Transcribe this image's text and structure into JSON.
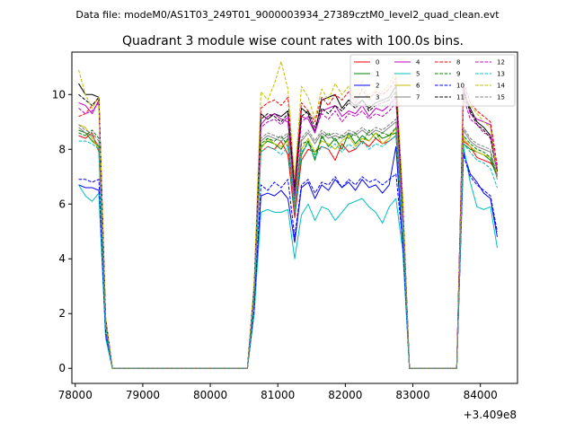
{
  "header": "Data file: modeM0/AS1T03_249T01_9000003934_27389cztM0_level2_quad_clean.evt",
  "chart_data": {
    "type": "line",
    "title": "Quadrant 3 module wise count rates with 100.0s bins.",
    "xlabel": "",
    "ylabel": "",
    "x_offset_label": "+3.409e8",
    "xlim": [
      77950,
      84550
    ],
    "ylim": [
      -0.55,
      11.55
    ],
    "x_ticks": [
      78000,
      79000,
      80000,
      81000,
      82000,
      83000,
      84000
    ],
    "x_tick_labels": [
      "78000",
      "79000",
      "80000",
      "81000",
      "82000",
      "83000",
      "84000"
    ],
    "y_ticks": [
      0,
      2,
      4,
      6,
      8,
      10
    ],
    "y_tick_labels": [
      "0",
      "2",
      "4",
      "6",
      "8",
      "10"
    ],
    "grid": false,
    "legend_position": "top-right",
    "x": [
      78050,
      78150,
      78250,
      78350,
      78450,
      78550,
      78650,
      78750,
      78850,
      78950,
      79050,
      79150,
      79250,
      79350,
      79450,
      79550,
      79650,
      79750,
      79850,
      79950,
      80050,
      80150,
      80250,
      80350,
      80450,
      80550,
      80650,
      80750,
      80850,
      80950,
      81050,
      81150,
      81250,
      81350,
      81450,
      81550,
      81650,
      81750,
      81850,
      81950,
      82050,
      82150,
      82250,
      82350,
      82450,
      82550,
      82650,
      82750,
      82850,
      82950,
      83050,
      83150,
      83250,
      83350,
      83450,
      83550,
      83650,
      83750,
      83850,
      83950,
      84050,
      84150,
      84250
    ],
    "series": [
      {
        "name": "0",
        "color": "#ff0000",
        "dash": "solid",
        "values": [
          8.5,
          8.4,
          8.6,
          7.9,
          1.6,
          0,
          0,
          0,
          0,
          0,
          0,
          0,
          0,
          0,
          0,
          0,
          0,
          0,
          0,
          0,
          0,
          0,
          0,
          0,
          0,
          0,
          2.6,
          7.9,
          8.1,
          8.0,
          8.3,
          7.8,
          5.5,
          7.6,
          8.0,
          7.9,
          8.1,
          8.0,
          7.6,
          8.2,
          7.9,
          8.0,
          8.3,
          8.1,
          8.4,
          8.2,
          8.3,
          8.5,
          5.2,
          0,
          0,
          0,
          0,
          0,
          0,
          0,
          0,
          8.3,
          8.1,
          7.7,
          7.6,
          7.5,
          7.2
        ]
      },
      {
        "name": "1",
        "color": "#008000",
        "dash": "solid",
        "values": [
          8.7,
          8.6,
          8.3,
          8.1,
          1.6,
          0,
          0,
          0,
          0,
          0,
          0,
          0,
          0,
          0,
          0,
          0,
          0,
          0,
          0,
          0,
          0,
          0,
          0,
          0,
          0,
          0,
          2.7,
          8.1,
          8.3,
          8.2,
          8.0,
          8.4,
          5.7,
          7.8,
          8.3,
          7.6,
          8.5,
          8.1,
          8.4,
          8.0,
          8.6,
          8.2,
          8.5,
          8.3,
          8.6,
          8.4,
          8.5,
          8.6,
          5.4,
          0,
          0,
          0,
          0,
          0,
          0,
          0,
          0,
          8.2,
          8.0,
          7.9,
          7.8,
          7.6,
          7.0
        ]
      },
      {
        "name": "2",
        "color": "#0000ff",
        "dash": "solid",
        "values": [
          6.7,
          6.6,
          6.6,
          6.5,
          1.2,
          0,
          0,
          0,
          0,
          0,
          0,
          0,
          0,
          0,
          0,
          0,
          0,
          0,
          0,
          0,
          0,
          0,
          0,
          0,
          0,
          0,
          2.1,
          6.3,
          6.4,
          6.3,
          6.5,
          6.2,
          4.6,
          6.6,
          6.8,
          6.2,
          6.7,
          6.5,
          6.9,
          6.6,
          6.8,
          6.5,
          6.9,
          6.6,
          6.7,
          6.4,
          6.7,
          8.1,
          4.5,
          0,
          0,
          0,
          0,
          0,
          0,
          0,
          0,
          7.9,
          7.1,
          6.8,
          6.4,
          6.2,
          4.8
        ]
      },
      {
        "name": "3",
        "color": "#000000",
        "dash": "solid",
        "values": [
          10.4,
          10.0,
          10.0,
          9.9,
          1.8,
          0,
          0,
          0,
          0,
          0,
          0,
          0,
          0,
          0,
          0,
          0,
          0,
          0,
          0,
          0,
          0,
          0,
          0,
          0,
          0,
          0,
          3.0,
          9.3,
          9.1,
          9.3,
          9.2,
          9.4,
          6.6,
          9.5,
          9.3,
          8.6,
          9.8,
          9.9,
          10.0,
          9.5,
          9.8,
          9.6,
          9.8,
          9.5,
          9.7,
          9.8,
          9.9,
          10.3,
          6.1,
          0,
          0,
          0,
          0,
          0,
          0,
          0,
          0,
          10.1,
          9.5,
          9.0,
          8.8,
          8.5,
          7.2
        ]
      },
      {
        "name": "4",
        "color": "#c000c0",
        "dash": "solid",
        "values": [
          9.7,
          9.6,
          9.3,
          9.8,
          1.8,
          0,
          0,
          0,
          0,
          0,
          0,
          0,
          0,
          0,
          0,
          0,
          0,
          0,
          0,
          0,
          0,
          0,
          0,
          0,
          0,
          0,
          2.9,
          8.9,
          9.2,
          9.3,
          9.1,
          9.0,
          6.3,
          9.2,
          9.1,
          8.6,
          9.4,
          9.5,
          9.6,
          9.2,
          9.4,
          9.3,
          9.6,
          9.2,
          9.5,
          9.4,
          9.6,
          9.9,
          5.9,
          0,
          0,
          0,
          0,
          0,
          0,
          0,
          0,
          10.3,
          9.3,
          9.1,
          9.0,
          8.9,
          7.0
        ]
      },
      {
        "name": "5",
        "color": "#00bfbf",
        "dash": "solid",
        "values": [
          6.7,
          6.3,
          6.1,
          6.4,
          1.1,
          0,
          0,
          0,
          0,
          0,
          0,
          0,
          0,
          0,
          0,
          0,
          0,
          0,
          0,
          0,
          0,
          0,
          0,
          0,
          0,
          0,
          2.0,
          5.7,
          5.8,
          5.7,
          5.7,
          5.8,
          4.0,
          5.6,
          6.0,
          5.4,
          5.9,
          5.8,
          5.4,
          5.7,
          6.0,
          6.1,
          6.2,
          5.9,
          5.7,
          5.3,
          5.9,
          6.2,
          4.3,
          0,
          0,
          0,
          0,
          0,
          0,
          0,
          0,
          8.1,
          6.8,
          5.9,
          5.8,
          5.9,
          4.4
        ]
      },
      {
        "name": "6",
        "color": "#bfbf00",
        "dash": "solid",
        "values": [
          8.9,
          8.8,
          8.4,
          8.0,
          1.6,
          0,
          0,
          0,
          0,
          0,
          0,
          0,
          0,
          0,
          0,
          0,
          0,
          0,
          0,
          0,
          0,
          0,
          0,
          0,
          0,
          0,
          2.7,
          8.0,
          8.4,
          8.2,
          8.1,
          8.3,
          5.8,
          8.0,
          8.4,
          7.9,
          8.3,
          8.2,
          8.0,
          8.3,
          8.5,
          8.1,
          8.4,
          8.3,
          8.6,
          8.2,
          8.4,
          8.8,
          5.3,
          0,
          0,
          0,
          0,
          0,
          0,
          0,
          0,
          8.4,
          8.1,
          7.9,
          7.8,
          7.7,
          7.1
        ]
      },
      {
        "name": "7",
        "color": "#808080",
        "dash": "solid",
        "values": [
          8.8,
          8.6,
          8.5,
          8.1,
          1.6,
          0,
          0,
          0,
          0,
          0,
          0,
          0,
          0,
          0,
          0,
          0,
          0,
          0,
          0,
          0,
          0,
          0,
          0,
          0,
          0,
          0,
          2.7,
          8.3,
          8.5,
          8.4,
          8.3,
          8.5,
          5.9,
          8.3,
          8.6,
          8.2,
          8.6,
          8.4,
          8.5,
          8.4,
          8.6,
          8.5,
          8.7,
          8.5,
          8.7,
          8.6,
          8.8,
          9.0,
          5.5,
          0,
          0,
          0,
          0,
          0,
          0,
          0,
          0,
          8.7,
          8.3,
          8.1,
          8.0,
          7.9,
          6.9
        ]
      },
      {
        "name": "8",
        "color": "#ff0000",
        "dash": "dashed",
        "values": [
          9.2,
          9.3,
          9.6,
          9.9,
          1.8,
          0,
          0,
          0,
          0,
          0,
          0,
          0,
          0,
          0,
          0,
          0,
          0,
          0,
          0,
          0,
          0,
          0,
          0,
          0,
          0,
          0,
          3.0,
          9.5,
          9.7,
          9.8,
          9.6,
          9.9,
          6.8,
          9.7,
          9.4,
          9.0,
          9.9,
          9.6,
          10.0,
          9.8,
          10.1,
          9.7,
          10.2,
          9.8,
          10.1,
          10.0,
          10.2,
          10.6,
          6.2,
          0,
          0,
          0,
          0,
          0,
          0,
          0,
          0,
          10.4,
          9.7,
          9.4,
          9.2,
          9.0,
          7.4
        ]
      },
      {
        "name": "9",
        "color": "#008000",
        "dash": "dashed",
        "values": [
          8.6,
          8.5,
          8.7,
          8.4,
          1.6,
          0,
          0,
          0,
          0,
          0,
          0,
          0,
          0,
          0,
          0,
          0,
          0,
          0,
          0,
          0,
          0,
          0,
          0,
          0,
          0,
          0,
          2.7,
          8.2,
          8.4,
          8.3,
          8.5,
          8.1,
          5.9,
          8.2,
          8.3,
          7.8,
          8.4,
          8.6,
          8.3,
          8.5,
          8.4,
          8.6,
          8.2,
          8.7,
          8.4,
          8.6,
          8.5,
          8.8,
          5.3,
          0,
          0,
          0,
          0,
          0,
          0,
          0,
          0,
          8.5,
          8.2,
          8.0,
          7.9,
          7.7,
          7.0
        ]
      },
      {
        "name": "10",
        "color": "#0000ff",
        "dash": "dashed",
        "values": [
          6.9,
          6.9,
          6.8,
          6.9,
          1.3,
          0,
          0,
          0,
          0,
          0,
          0,
          0,
          0,
          0,
          0,
          0,
          0,
          0,
          0,
          0,
          0,
          0,
          0,
          0,
          0,
          0,
          2.2,
          6.7,
          6.5,
          6.8,
          6.6,
          6.9,
          4.8,
          6.7,
          6.9,
          6.4,
          6.8,
          6.7,
          7.0,
          6.6,
          6.9,
          6.7,
          7.0,
          6.8,
          6.9,
          6.7,
          6.9,
          7.1,
          4.6,
          0,
          0,
          0,
          0,
          0,
          0,
          0,
          0,
          7.8,
          7.0,
          6.7,
          6.5,
          6.3,
          5.0
        ]
      },
      {
        "name": "11",
        "color": "#000000",
        "dash": "dashed",
        "values": [
          10.0,
          9.8,
          9.6,
          9.9,
          1.8,
          0,
          0,
          0,
          0,
          0,
          0,
          0,
          0,
          0,
          0,
          0,
          0,
          0,
          0,
          0,
          0,
          0,
          0,
          0,
          0,
          0,
          3.0,
          9.1,
          9.3,
          9.2,
          9.0,
          9.3,
          6.5,
          9.2,
          9.4,
          8.8,
          9.5,
          9.3,
          9.6,
          9.4,
          9.7,
          9.5,
          9.8,
          9.4,
          9.6,
          9.7,
          9.8,
          10.1,
          6.0,
          0,
          0,
          0,
          0,
          0,
          0,
          0,
          0,
          10.0,
          9.4,
          8.9,
          8.7,
          8.4,
          7.1
        ]
      },
      {
        "name": "12",
        "color": "#c000c0",
        "dash": "dashed",
        "values": [
          9.5,
          9.3,
          9.4,
          9.7,
          1.7,
          0,
          0,
          0,
          0,
          0,
          0,
          0,
          0,
          0,
          0,
          0,
          0,
          0,
          0,
          0,
          0,
          0,
          0,
          0,
          0,
          0,
          2.9,
          8.8,
          9.0,
          9.1,
          8.9,
          9.2,
          6.2,
          9.0,
          9.2,
          8.7,
          9.3,
          9.1,
          9.4,
          9.0,
          9.3,
          9.2,
          9.4,
          9.1,
          9.3,
          9.2,
          9.4,
          9.7,
          5.8,
          0,
          0,
          0,
          0,
          0,
          0,
          0,
          0,
          9.9,
          9.1,
          8.9,
          8.6,
          8.5,
          7.3
        ]
      },
      {
        "name": "13",
        "color": "#00bfbf",
        "dash": "dashed",
        "values": [
          8.3,
          8.3,
          8.2,
          8.0,
          1.5,
          0,
          0,
          0,
          0,
          0,
          0,
          0,
          0,
          0,
          0,
          0,
          0,
          0,
          0,
          0,
          0,
          0,
          0,
          0,
          0,
          0,
          2.6,
          7.9,
          8.1,
          8.0,
          7.8,
          8.1,
          5.7,
          7.9,
          8.2,
          7.7,
          8.1,
          8.0,
          8.2,
          7.9,
          8.2,
          8.0,
          8.3,
          8.0,
          8.2,
          8.1,
          8.3,
          8.5,
          5.2,
          0,
          0,
          0,
          0,
          0,
          0,
          0,
          0,
          8.2,
          7.9,
          7.6,
          7.5,
          7.3,
          6.6
        ]
      },
      {
        "name": "14",
        "color": "#bfbf00",
        "dash": "dashed",
        "values": [
          10.9,
          10.0,
          9.5,
          9.9,
          1.9,
          0,
          0,
          0,
          0,
          0,
          0,
          0,
          0,
          0,
          0,
          0,
          0,
          0,
          0,
          0,
          0,
          0,
          0,
          0,
          0,
          0,
          3.2,
          10.1,
          9.8,
          10.4,
          11.2,
          10.2,
          6.9,
          10.3,
          9.9,
          9.1,
          10.2,
          9.8,
          10.4,
          10.0,
          10.3,
          9.9,
          10.5,
          9.8,
          10.2,
          10.1,
          10.4,
          10.8,
          6.3,
          0,
          0,
          0,
          0,
          0,
          0,
          0,
          0,
          9.9,
          9.6,
          9.3,
          9.0,
          8.8,
          7.0
        ]
      },
      {
        "name": "15",
        "color": "#808080",
        "dash": "dashed",
        "values": [
          8.9,
          8.7,
          8.6,
          8.3,
          1.6,
          0,
          0,
          0,
          0,
          0,
          0,
          0,
          0,
          0,
          0,
          0,
          0,
          0,
          0,
          0,
          0,
          0,
          0,
          0,
          0,
          0,
          2.7,
          8.4,
          8.6,
          8.5,
          8.4,
          8.6,
          6.0,
          8.4,
          8.7,
          8.3,
          8.7,
          8.5,
          8.6,
          8.5,
          8.7,
          8.6,
          8.8,
          8.6,
          8.8,
          8.7,
          8.9,
          9.1,
          5.6,
          0,
          0,
          0,
          0,
          0,
          0,
          0,
          0,
          8.8,
          8.4,
          8.2,
          8.1,
          8.0,
          7.0
        ]
      }
    ]
  }
}
